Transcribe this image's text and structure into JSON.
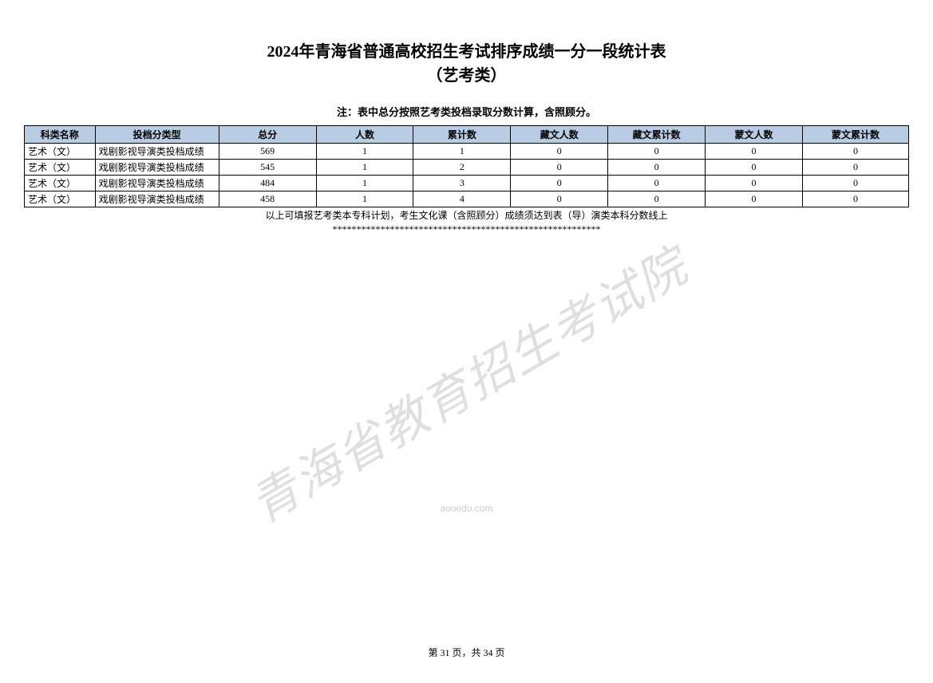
{
  "title": {
    "line1": "2024年青海省普通高校招生考试排序成绩一分一段统计表",
    "line2": "（艺考类）"
  },
  "note": "注：表中总分按照艺考类投档录取分数计算，含照顾分。",
  "table": {
    "columns": [
      "科类名称",
      "投档分类型",
      "总分",
      "人数",
      "累计数",
      "藏文人数",
      "藏文累计数",
      "蒙文人数",
      "蒙文累计数"
    ],
    "rows": [
      [
        "艺术（文）",
        "戏剧影视导演类投档成绩",
        "569",
        "1",
        "1",
        "0",
        "0",
        "0",
        "0"
      ],
      [
        "艺术（文）",
        "戏剧影视导演类投档成绩",
        "545",
        "1",
        "2",
        "0",
        "0",
        "0",
        "0"
      ],
      [
        "艺术（文）",
        "戏剧影视导演类投档成绩",
        "484",
        "1",
        "3",
        "0",
        "0",
        "0",
        "0"
      ],
      [
        "艺术（文）",
        "戏剧影视导演类投档成绩",
        "458",
        "1",
        "4",
        "0",
        "0",
        "0",
        "0"
      ]
    ],
    "header_bg": "#b8cce4",
    "border_color": "#000000"
  },
  "footer_note": "以上可填报艺考类本专科计划，考生文化课（含照顾分）成绩须达到表（导）演类本科分数线上",
  "footer_stars": "********************************************************",
  "watermark": "青海省教育招生考试院",
  "small_watermark": "aooedu.com",
  "page_info": "第 31 页，共 34 页"
}
